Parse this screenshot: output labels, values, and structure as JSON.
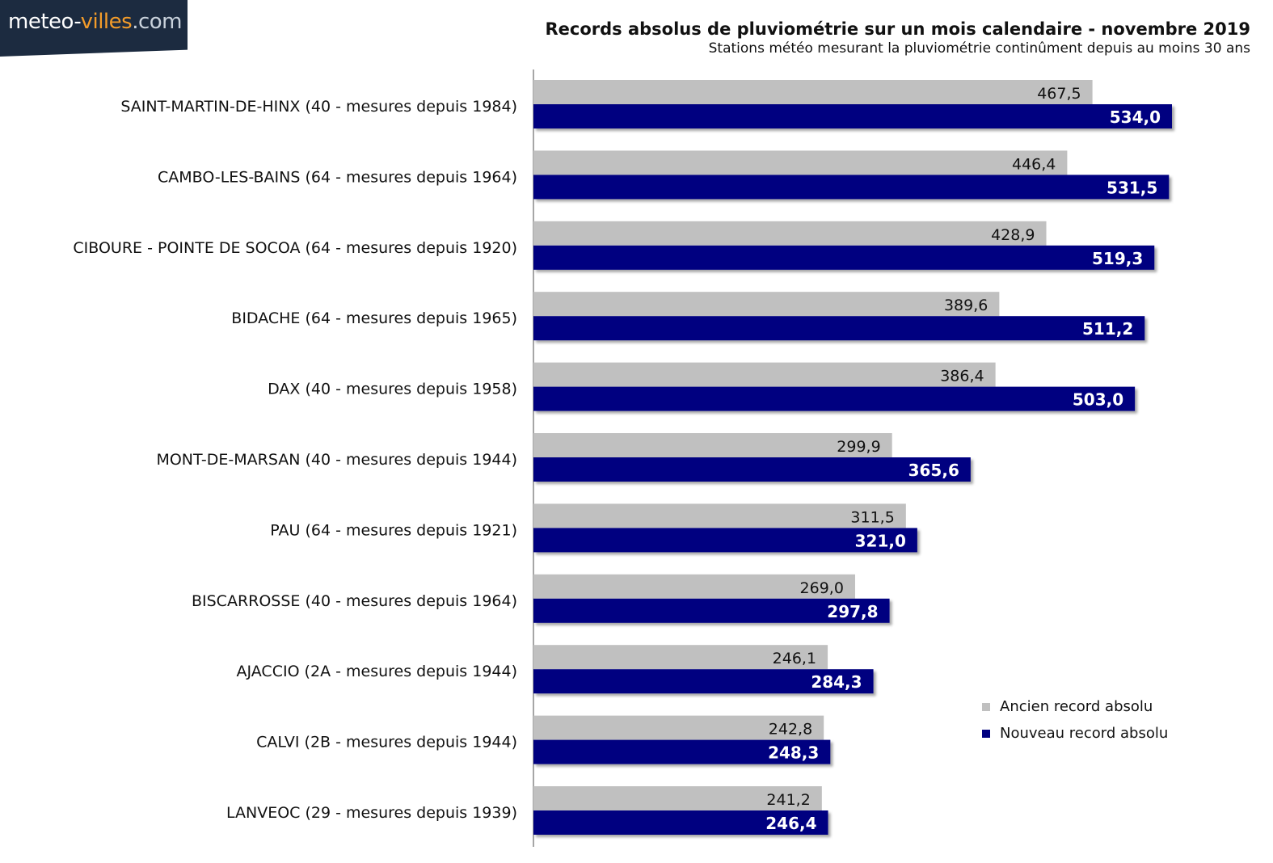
{
  "logo": {
    "part1": "meteo-",
    "part2": "villes",
    "part3": ".com"
  },
  "chart_data": {
    "type": "bar",
    "orientation": "horizontal",
    "title": "Records absolus de pluviométrie sur un mois calendaire - novembre 2019",
    "subtitle": "Stations météo mesurant la pluviométrie continûment depuis au moins 30 ans",
    "categories": [
      "SAINT-MARTIN-DE-HINX (40 - mesures depuis 1984)",
      "CAMBO-LES-BAINS (64 - mesures depuis 1964)",
      "CIBOURE - POINTE DE SOCOA (64 - mesures depuis 1920)",
      "BIDACHE (64 - mesures depuis 1965)",
      "DAX (40 - mesures depuis 1958)",
      "MONT-DE-MARSAN (40 - mesures depuis 1944)",
      "PAU (64 - mesures depuis 1921)",
      "BISCARROSSE (40 - mesures depuis 1964)",
      "AJACCIO (2A - mesures depuis 1944)",
      "CALVI (2B - mesures depuis 1944)",
      "LANVEOC (29 - mesures depuis 1939)"
    ],
    "series": [
      {
        "name": "Ancien record absolu",
        "color": "#c0c0c0",
        "values": [
          467.5,
          446.4,
          428.9,
          389.6,
          386.4,
          299.9,
          311.5,
          269.0,
          246.1,
          242.8,
          241.2
        ],
        "labels": [
          "467,5",
          "446,4",
          "428,9",
          "389,6",
          "386,4",
          "299,9",
          "311,5",
          "269,0",
          "246,1",
          "242,8",
          "241,2"
        ]
      },
      {
        "name": "Nouveau record absolu",
        "color": "#000080",
        "values": [
          534.0,
          531.5,
          519.3,
          511.2,
          503.0,
          365.6,
          321.0,
          297.8,
          284.3,
          248.3,
          246.4
        ],
        "labels": [
          "534,0",
          "531,5",
          "519,3",
          "511,2",
          "503,0",
          "365,6",
          "321,0",
          "297,8",
          "284,3",
          "248,3",
          "246,4"
        ]
      }
    ],
    "xlim": [
      0,
      570
    ],
    "grid": false,
    "legend_position": "bottom-right"
  }
}
